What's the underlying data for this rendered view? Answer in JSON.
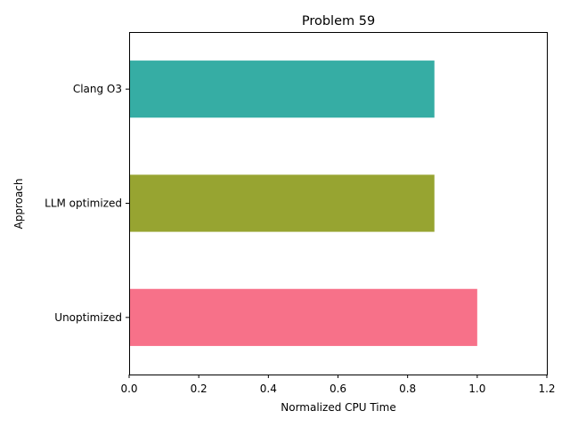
{
  "chart_data": {
    "type": "bar",
    "orientation": "horizontal",
    "title": "Problem 59",
    "xlabel": "Normalized CPU Time",
    "ylabel": "Approach",
    "categories": [
      "Clang O3",
      "LLM optimized",
      "Unoptimized"
    ],
    "values": [
      0.877,
      0.877,
      1.0
    ],
    "colors": [
      "#36ada4",
      "#97a431",
      "#f77189"
    ],
    "xlim": [
      0,
      1.2
    ],
    "xticks": [
      0.0,
      0.2,
      0.4,
      0.6,
      0.8,
      1.0,
      1.2
    ],
    "xtick_labels": [
      "0.0",
      "0.2",
      "0.4",
      "0.6",
      "0.8",
      "1.0",
      "1.2"
    ],
    "grid": false,
    "legend": "none"
  }
}
